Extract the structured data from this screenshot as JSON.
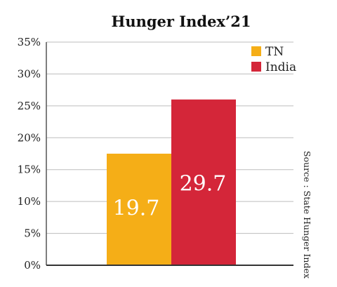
{
  "chart_data": {
    "type": "bar",
    "title": "Hunger Index’21",
    "categories": [
      "TN",
      "India"
    ],
    "values": [
      19.7,
      29.7
    ],
    "display_heights": [
      17.5,
      26
    ],
    "data_labels": [
      "19.7",
      "29.7"
    ],
    "colors": [
      "#F5AE17",
      "#D42639"
    ],
    "ylim": [
      0,
      35
    ],
    "yticks": [
      0,
      5,
      10,
      15,
      20,
      25,
      30,
      35
    ],
    "ytick_labels": [
      "0%",
      "5%",
      "10%",
      "15%",
      "20%",
      "25%",
      "30%",
      "35%"
    ],
    "grid": true,
    "legend": {
      "position": "top-right",
      "entries": [
        "TN",
        "India"
      ]
    },
    "source": "Source : State Hunger Index"
  }
}
